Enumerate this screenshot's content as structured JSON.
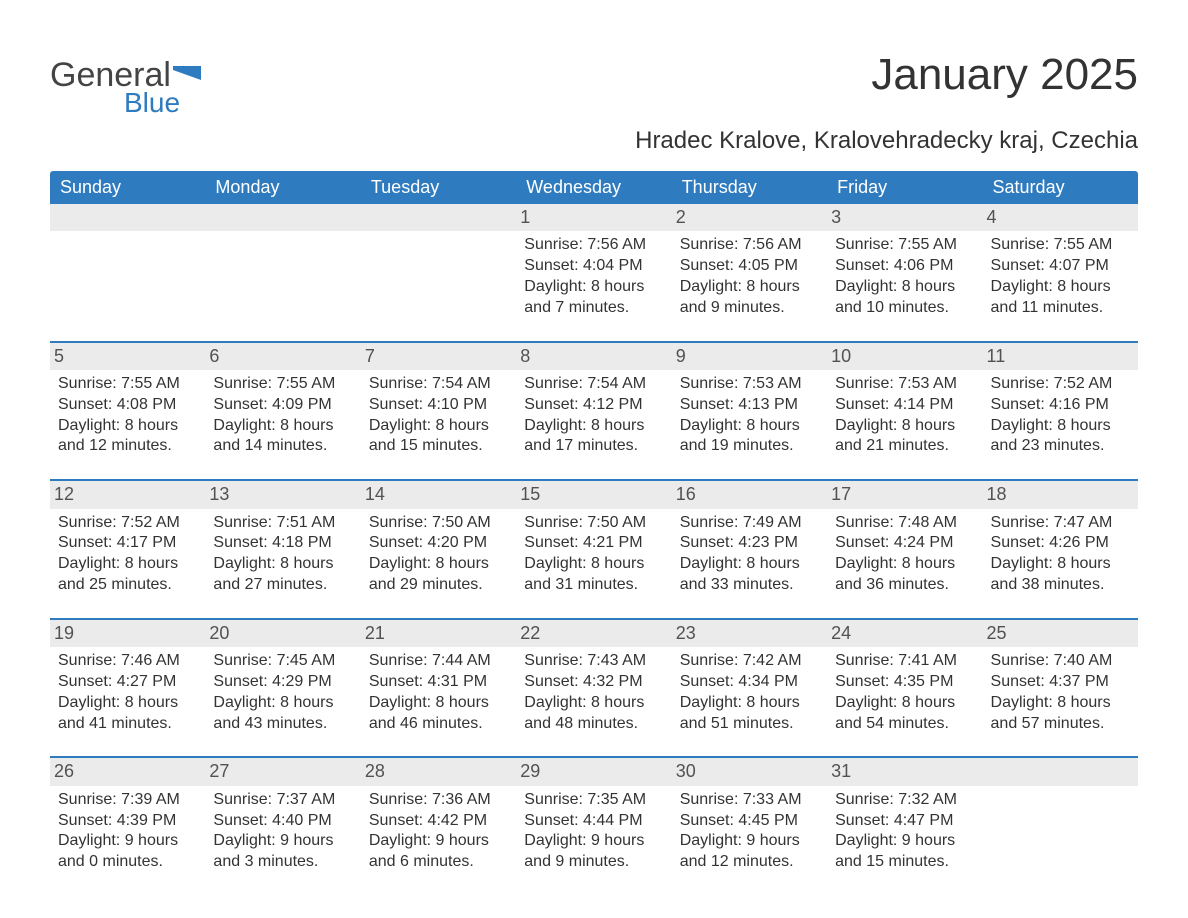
{
  "logo": {
    "text_general": "General",
    "text_blue": "Blue"
  },
  "title": "January 2025",
  "subtitle": "Hradec Kralove, Kralovehradecky kraj, Czechia",
  "colors": {
    "header_bg": "#2f7bbf",
    "header_text": "#ffffff",
    "daynum_bg": "#ebebeb",
    "daynum_text": "#525252",
    "row_border": "#2f7bbf",
    "body_text": "#333333",
    "page_bg": "#ffffff"
  },
  "typography": {
    "title_fontsize": 44,
    "subtitle_fontsize": 24,
    "header_fontsize": 18,
    "daynum_fontsize": 18,
    "cell_fontsize": 16
  },
  "weekdays": [
    "Sunday",
    "Monday",
    "Tuesday",
    "Wednesday",
    "Thursday",
    "Friday",
    "Saturday"
  ],
  "weeks": [
    [
      {
        "day": "",
        "sunrise": "",
        "sunset": "",
        "daylight": ""
      },
      {
        "day": "",
        "sunrise": "",
        "sunset": "",
        "daylight": ""
      },
      {
        "day": "",
        "sunrise": "",
        "sunset": "",
        "daylight": ""
      },
      {
        "day": "1",
        "sunrise": "Sunrise: 7:56 AM",
        "sunset": "Sunset: 4:04 PM",
        "daylight": "Daylight: 8 hours and 7 minutes."
      },
      {
        "day": "2",
        "sunrise": "Sunrise: 7:56 AM",
        "sunset": "Sunset: 4:05 PM",
        "daylight": "Daylight: 8 hours and 9 minutes."
      },
      {
        "day": "3",
        "sunrise": "Sunrise: 7:55 AM",
        "sunset": "Sunset: 4:06 PM",
        "daylight": "Daylight: 8 hours and 10 minutes."
      },
      {
        "day": "4",
        "sunrise": "Sunrise: 7:55 AM",
        "sunset": "Sunset: 4:07 PM",
        "daylight": "Daylight: 8 hours and 11 minutes."
      }
    ],
    [
      {
        "day": "5",
        "sunrise": "Sunrise: 7:55 AM",
        "sunset": "Sunset: 4:08 PM",
        "daylight": "Daylight: 8 hours and 12 minutes."
      },
      {
        "day": "6",
        "sunrise": "Sunrise: 7:55 AM",
        "sunset": "Sunset: 4:09 PM",
        "daylight": "Daylight: 8 hours and 14 minutes."
      },
      {
        "day": "7",
        "sunrise": "Sunrise: 7:54 AM",
        "sunset": "Sunset: 4:10 PM",
        "daylight": "Daylight: 8 hours and 15 minutes."
      },
      {
        "day": "8",
        "sunrise": "Sunrise: 7:54 AM",
        "sunset": "Sunset: 4:12 PM",
        "daylight": "Daylight: 8 hours and 17 minutes."
      },
      {
        "day": "9",
        "sunrise": "Sunrise: 7:53 AM",
        "sunset": "Sunset: 4:13 PM",
        "daylight": "Daylight: 8 hours and 19 minutes."
      },
      {
        "day": "10",
        "sunrise": "Sunrise: 7:53 AM",
        "sunset": "Sunset: 4:14 PM",
        "daylight": "Daylight: 8 hours and 21 minutes."
      },
      {
        "day": "11",
        "sunrise": "Sunrise: 7:52 AM",
        "sunset": "Sunset: 4:16 PM",
        "daylight": "Daylight: 8 hours and 23 minutes."
      }
    ],
    [
      {
        "day": "12",
        "sunrise": "Sunrise: 7:52 AM",
        "sunset": "Sunset: 4:17 PM",
        "daylight": "Daylight: 8 hours and 25 minutes."
      },
      {
        "day": "13",
        "sunrise": "Sunrise: 7:51 AM",
        "sunset": "Sunset: 4:18 PM",
        "daylight": "Daylight: 8 hours and 27 minutes."
      },
      {
        "day": "14",
        "sunrise": "Sunrise: 7:50 AM",
        "sunset": "Sunset: 4:20 PM",
        "daylight": "Daylight: 8 hours and 29 minutes."
      },
      {
        "day": "15",
        "sunrise": "Sunrise: 7:50 AM",
        "sunset": "Sunset: 4:21 PM",
        "daylight": "Daylight: 8 hours and 31 minutes."
      },
      {
        "day": "16",
        "sunrise": "Sunrise: 7:49 AM",
        "sunset": "Sunset: 4:23 PM",
        "daylight": "Daylight: 8 hours and 33 minutes."
      },
      {
        "day": "17",
        "sunrise": "Sunrise: 7:48 AM",
        "sunset": "Sunset: 4:24 PM",
        "daylight": "Daylight: 8 hours and 36 minutes."
      },
      {
        "day": "18",
        "sunrise": "Sunrise: 7:47 AM",
        "sunset": "Sunset: 4:26 PM",
        "daylight": "Daylight: 8 hours and 38 minutes."
      }
    ],
    [
      {
        "day": "19",
        "sunrise": "Sunrise: 7:46 AM",
        "sunset": "Sunset: 4:27 PM",
        "daylight": "Daylight: 8 hours and 41 minutes."
      },
      {
        "day": "20",
        "sunrise": "Sunrise: 7:45 AM",
        "sunset": "Sunset: 4:29 PM",
        "daylight": "Daylight: 8 hours and 43 minutes."
      },
      {
        "day": "21",
        "sunrise": "Sunrise: 7:44 AM",
        "sunset": "Sunset: 4:31 PM",
        "daylight": "Daylight: 8 hours and 46 minutes."
      },
      {
        "day": "22",
        "sunrise": "Sunrise: 7:43 AM",
        "sunset": "Sunset: 4:32 PM",
        "daylight": "Daylight: 8 hours and 48 minutes."
      },
      {
        "day": "23",
        "sunrise": "Sunrise: 7:42 AM",
        "sunset": "Sunset: 4:34 PM",
        "daylight": "Daylight: 8 hours and 51 minutes."
      },
      {
        "day": "24",
        "sunrise": "Sunrise: 7:41 AM",
        "sunset": "Sunset: 4:35 PM",
        "daylight": "Daylight: 8 hours and 54 minutes."
      },
      {
        "day": "25",
        "sunrise": "Sunrise: 7:40 AM",
        "sunset": "Sunset: 4:37 PM",
        "daylight": "Daylight: 8 hours and 57 minutes."
      }
    ],
    [
      {
        "day": "26",
        "sunrise": "Sunrise: 7:39 AM",
        "sunset": "Sunset: 4:39 PM",
        "daylight": "Daylight: 9 hours and 0 minutes."
      },
      {
        "day": "27",
        "sunrise": "Sunrise: 7:37 AM",
        "sunset": "Sunset: 4:40 PM",
        "daylight": "Daylight: 9 hours and 3 minutes."
      },
      {
        "day": "28",
        "sunrise": "Sunrise: 7:36 AM",
        "sunset": "Sunset: 4:42 PM",
        "daylight": "Daylight: 9 hours and 6 minutes."
      },
      {
        "day": "29",
        "sunrise": "Sunrise: 7:35 AM",
        "sunset": "Sunset: 4:44 PM",
        "daylight": "Daylight: 9 hours and 9 minutes."
      },
      {
        "day": "30",
        "sunrise": "Sunrise: 7:33 AM",
        "sunset": "Sunset: 4:45 PM",
        "daylight": "Daylight: 9 hours and 12 minutes."
      },
      {
        "day": "31",
        "sunrise": "Sunrise: 7:32 AM",
        "sunset": "Sunset: 4:47 PM",
        "daylight": "Daylight: 9 hours and 15 minutes."
      },
      {
        "day": "",
        "sunrise": "",
        "sunset": "",
        "daylight": ""
      }
    ]
  ]
}
